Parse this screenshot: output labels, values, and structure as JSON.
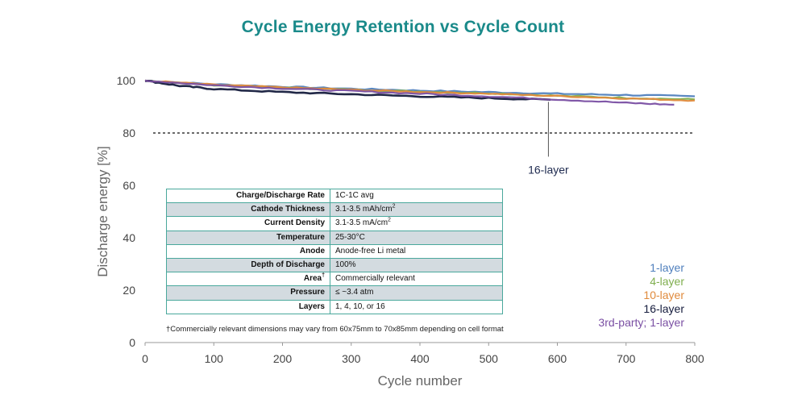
{
  "chart_data": {
    "type": "line",
    "title": "Cycle Energy Retention vs Cycle Count",
    "xlabel": "Cycle number",
    "ylabel": "Discharge energy [%]",
    "xlim": [
      0,
      800
    ],
    "ylim": [
      0,
      100
    ],
    "xticks": [
      0,
      100,
      200,
      300,
      400,
      500,
      600,
      700,
      800
    ],
    "yticks": [
      0,
      20,
      40,
      60,
      80,
      100
    ],
    "grid": false,
    "legend_position": "bottom-right",
    "threshold_line": {
      "y": 80,
      "style": "dashed"
    },
    "series": [
      {
        "name": "1-layer",
        "color": "#4f7fbd",
        "x": [
          0,
          100,
          200,
          300,
          400,
          500,
          600,
          700,
          800
        ],
        "y": [
          100,
          98.6,
          97.7,
          96.9,
          96.2,
          95.6,
          95.0,
          94.5,
          94.0
        ]
      },
      {
        "name": "4-layer",
        "color": "#7fae4e",
        "x": [
          0,
          100,
          200,
          300,
          400,
          500,
          600,
          700,
          800
        ],
        "y": [
          100,
          98.3,
          97.3,
          96.5,
          95.8,
          95.2,
          94.2,
          93.4,
          92.8
        ]
      },
      {
        "name": "10-layer",
        "color": "#e08a3c",
        "x": [
          0,
          100,
          200,
          300,
          400,
          500,
          600,
          700,
          800
        ],
        "y": [
          100,
          98.4,
          97.4,
          96.5,
          95.7,
          95.0,
          94.1,
          93.2,
          92.4
        ]
      },
      {
        "name": "16-layer",
        "color": "#151c3d",
        "x": [
          0,
          50,
          100,
          200,
          300,
          400,
          500,
          590
        ],
        "y": [
          100,
          98.0,
          96.8,
          95.6,
          94.8,
          94.0,
          93.3,
          92.7
        ]
      },
      {
        "name": "3rd-party; 1-layer",
        "color": "#7a4fa3",
        "x": [
          0,
          100,
          200,
          300,
          400,
          500,
          600,
          700,
          770
        ],
        "y": [
          100,
          98.2,
          97.0,
          96.0,
          95.0,
          94.0,
          92.8,
          91.5,
          90.8
        ]
      }
    ],
    "annotations": [
      {
        "text": "16-layer",
        "x": 587,
        "y": 92.5
      }
    ]
  },
  "table": {
    "rows": [
      {
        "key": "Charge/Discharge Rate",
        "value": "1C-1C avg",
        "sup": ""
      },
      {
        "key": "Cathode Thickness",
        "value": "3.1-3.5 mAh/cm",
        "value_sup": "2",
        "sup": ""
      },
      {
        "key": "Current Density",
        "value": "3.1-3.5 mA/cm",
        "value_sup": "2",
        "sup": ""
      },
      {
        "key": "Temperature",
        "value": "25-30°C",
        "sup": ""
      },
      {
        "key": "Anode",
        "value": "Anode-free Li metal",
        "sup": ""
      },
      {
        "key": "Depth of Discharge",
        "value": "100%",
        "sup": ""
      },
      {
        "key": "Area",
        "value": "Commercially relevant",
        "sup": "†"
      },
      {
        "key": "Pressure",
        "value": "≤ ~3.4 atm",
        "sup": ""
      },
      {
        "key": "Layers",
        "value": "1, 4, 10, or 16",
        "sup": ""
      }
    ],
    "footnote": "†Commercially relevant dimensions may vary from 60x75mm to 70x85mm depending on cell format"
  }
}
